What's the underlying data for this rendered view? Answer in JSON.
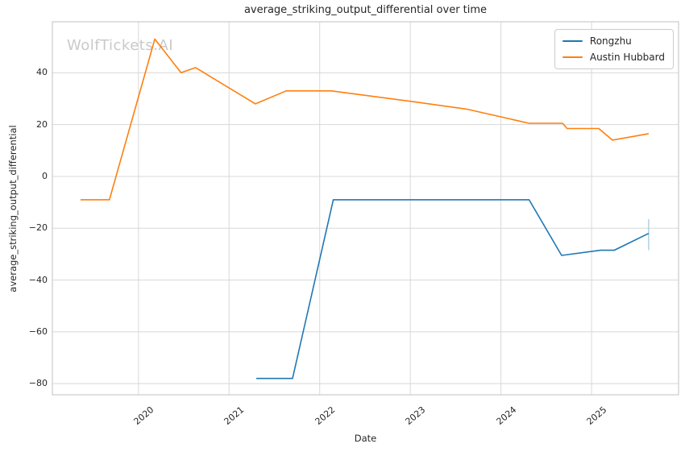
{
  "title": "average_striking_output_differential over time",
  "watermark": "WolfTickets.AI",
  "axes": {
    "xlabel": "Date",
    "ylabel": "average_striking_output_differential"
  },
  "legend": {
    "items": [
      {
        "label": "Rongzhu",
        "color": "#1f77b4"
      },
      {
        "label": "Austin Hubbard",
        "color": "#ff7f0e"
      }
    ]
  },
  "colors": {
    "rongzhu_line": "#1f77b4",
    "austin_hubbard_line": "#ff7f0e",
    "error_bar": "#b1cfe4",
    "grid": "#d8d8d8",
    "spine": "#cccccc",
    "text": "#262626",
    "watermark": "#c9c9c9",
    "background": "#ffffff"
  },
  "chart_data": {
    "type": "line",
    "title": "average_striking_output_differential over time",
    "xlabel": "Date",
    "ylabel": "average_striking_output_differential",
    "grid": true,
    "legend_position": "upper right",
    "xlim": [
      2019.05,
      2025.96
    ],
    "ylim": [
      -84.3,
      59.7
    ],
    "x_ticks": [
      2020,
      2021,
      2022,
      2023,
      2024,
      2025
    ],
    "x_tick_labels": [
      "2020",
      "2021",
      "2022",
      "2023",
      "2024",
      "2025"
    ],
    "y_ticks": [
      40,
      20,
      0,
      -20,
      -40,
      -60,
      -80
    ],
    "y_tick_labels": [
      "40",
      "20",
      "0",
      "−20",
      "−40",
      "−60",
      "−80"
    ],
    "series": [
      {
        "name": "Rongzhu",
        "color": "#1f77b4",
        "x": [
          2021.3,
          2021.7,
          2022.15,
          2024.31,
          2024.67,
          2025.1,
          2025.25,
          2025.63
        ],
        "y": [
          -78,
          -78,
          -9,
          -9,
          -30.5,
          -28.5,
          -28.5,
          -22
        ]
      },
      {
        "name": "Austin Hubbard",
        "color": "#ff7f0e",
        "x": [
          2019.36,
          2019.68,
          2020.18,
          2020.47,
          2020.63,
          2021.29,
          2021.63,
          2022.13,
          2023.0,
          2023.62,
          2024.31,
          2024.68,
          2024.73,
          2025.08,
          2025.23,
          2025.63
        ],
        "y": [
          -9,
          -9,
          53,
          40,
          42,
          28,
          33,
          33,
          29,
          26,
          20.5,
          20.5,
          18.5,
          18.5,
          14,
          16.5
        ]
      }
    ],
    "error_bars": [
      {
        "series": "Rongzhu",
        "x": 2025.63,
        "y_low": -28.5,
        "y_high": -16.5,
        "color": "#b1cfe4"
      }
    ]
  }
}
